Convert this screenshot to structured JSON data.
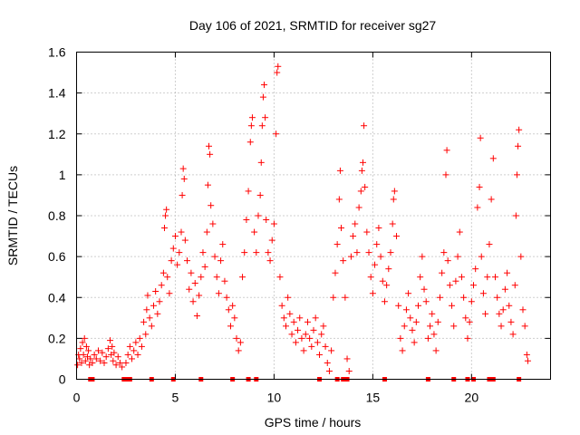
{
  "chart_data": {
    "type": "scatter",
    "title": "Day 106 of 2021, SRMTID for receiver sg27",
    "xlabel": "GPS time / hours",
    "ylabel": "SRMTID / TECUs",
    "xlim": [
      0,
      24
    ],
    "ylim": [
      0,
      1.6
    ],
    "xticks": [
      0,
      5,
      10,
      15,
      20
    ],
    "xtick_labels": [
      "0",
      "5",
      "10",
      "15",
      "20"
    ],
    "yticks": [
      0,
      0.2,
      0.4,
      0.6,
      0.8,
      1.0,
      1.2,
      1.4,
      1.6
    ],
    "ytick_labels": [
      "0",
      "0.2",
      "0.4",
      "0.6",
      "0.8",
      "1",
      "1.2",
      "1.4",
      "1.6"
    ],
    "grid": true,
    "marker": "+",
    "color": "#ff0000",
    "series": [
      {
        "name": "SRMTID",
        "points": [
          [
            0.05,
            0.07
          ],
          [
            0.1,
            0.12
          ],
          [
            0.15,
            0.1
          ],
          [
            0.2,
            0.15
          ],
          [
            0.25,
            0.08
          ],
          [
            0.3,
            0.18
          ],
          [
            0.35,
            0.12
          ],
          [
            0.4,
            0.2
          ],
          [
            0.45,
            0.09
          ],
          [
            0.5,
            0.16
          ],
          [
            0.55,
            0.11
          ],
          [
            0.6,
            0.14
          ],
          [
            0.65,
            0.07
          ],
          [
            0.7,
            0.1
          ],
          [
            0.8,
            0.08
          ],
          [
            0.9,
            0.12
          ],
          [
            1.0,
            0.1
          ],
          [
            1.1,
            0.14
          ],
          [
            1.2,
            0.09
          ],
          [
            1.3,
            0.13
          ],
          [
            1.4,
            0.08
          ],
          [
            1.5,
            0.11
          ],
          [
            1.6,
            0.15
          ],
          [
            1.7,
            0.19
          ],
          [
            1.75,
            0.12
          ],
          [
            1.8,
            0.16
          ],
          [
            1.85,
            0.09
          ],
          [
            1.9,
            0.13
          ],
          [
            2.0,
            0.07
          ],
          [
            2.1,
            0.11
          ],
          [
            2.2,
            0.08
          ],
          [
            2.3,
            0.06
          ],
          [
            2.5,
            0.08
          ],
          [
            2.6,
            0.12
          ],
          [
            2.7,
            0.16
          ],
          [
            2.8,
            0.1
          ],
          [
            2.9,
            0.14
          ],
          [
            3.0,
            0.18
          ],
          [
            3.1,
            0.12
          ],
          [
            3.2,
            0.2
          ],
          [
            3.3,
            0.16
          ],
          [
            3.4,
            0.28
          ],
          [
            3.5,
            0.22
          ],
          [
            3.55,
            0.34
          ],
          [
            3.6,
            0.41
          ],
          [
            3.7,
            0.3
          ],
          [
            3.8,
            0.26
          ],
          [
            3.9,
            0.36
          ],
          [
            4.0,
            0.43
          ],
          [
            4.1,
            0.32
          ],
          [
            4.2,
            0.38
          ],
          [
            4.3,
            0.46
          ],
          [
            4.4,
            0.52
          ],
          [
            4.45,
            0.74
          ],
          [
            4.5,
            0.8
          ],
          [
            4.55,
            0.83
          ],
          [
            4.6,
            0.5
          ],
          [
            4.7,
            0.42
          ],
          [
            4.8,
            0.58
          ],
          [
            4.9,
            0.64
          ],
          [
            5.0,
            0.7
          ],
          [
            5.1,
            0.56
          ],
          [
            5.2,
            0.62
          ],
          [
            5.3,
            0.72
          ],
          [
            5.35,
            0.9
          ],
          [
            5.4,
            1.03
          ],
          [
            5.45,
            0.98
          ],
          [
            5.5,
            0.68
          ],
          [
            5.6,
            0.58
          ],
          [
            5.7,
            0.44
          ],
          [
            5.8,
            0.52
          ],
          [
            5.9,
            0.38
          ],
          [
            6.0,
            0.47
          ],
          [
            6.1,
            0.31
          ],
          [
            6.2,
            0.41
          ],
          [
            6.3,
            0.5
          ],
          [
            6.4,
            0.62
          ],
          [
            6.5,
            0.55
          ],
          [
            6.6,
            0.72
          ],
          [
            6.65,
            0.95
          ],
          [
            6.7,
            1.14
          ],
          [
            6.75,
            1.1
          ],
          [
            6.8,
            0.85
          ],
          [
            6.9,
            0.76
          ],
          [
            7.0,
            0.6
          ],
          [
            7.1,
            0.5
          ],
          [
            7.2,
            0.42
          ],
          [
            7.3,
            0.58
          ],
          [
            7.4,
            0.66
          ],
          [
            7.5,
            0.48
          ],
          [
            7.6,
            0.4
          ],
          [
            7.7,
            0.34
          ],
          [
            7.8,
            0.26
          ],
          [
            7.9,
            0.36
          ],
          [
            8.0,
            0.3
          ],
          [
            8.1,
            0.2
          ],
          [
            8.2,
            0.14
          ],
          [
            8.3,
            0.18
          ],
          [
            8.4,
            0.5
          ],
          [
            8.5,
            0.62
          ],
          [
            8.6,
            0.78
          ],
          [
            8.7,
            0.92
          ],
          [
            8.8,
            1.16
          ],
          [
            8.85,
            1.24
          ],
          [
            8.9,
            1.28
          ],
          [
            9.0,
            0.72
          ],
          [
            9.1,
            0.62
          ],
          [
            9.2,
            0.8
          ],
          [
            9.3,
            0.9
          ],
          [
            9.35,
            1.06
          ],
          [
            9.4,
            1.24
          ],
          [
            9.45,
            1.38
          ],
          [
            9.5,
            1.44
          ],
          [
            9.55,
            1.28
          ],
          [
            9.6,
            0.78
          ],
          [
            9.7,
            0.62
          ],
          [
            9.8,
            0.58
          ],
          [
            9.9,
            0.68
          ],
          [
            10.0,
            0.76
          ],
          [
            10.1,
            1.2
          ],
          [
            10.15,
            1.5
          ],
          [
            10.2,
            1.53
          ],
          [
            10.3,
            0.5
          ],
          [
            10.4,
            0.36
          ],
          [
            10.5,
            0.3
          ],
          [
            10.6,
            0.26
          ],
          [
            10.7,
            0.4
          ],
          [
            10.8,
            0.32
          ],
          [
            10.9,
            0.22
          ],
          [
            11.0,
            0.28
          ],
          [
            11.1,
            0.18
          ],
          [
            11.2,
            0.24
          ],
          [
            11.3,
            0.3
          ],
          [
            11.4,
            0.2
          ],
          [
            11.5,
            0.14
          ],
          [
            11.6,
            0.22
          ],
          [
            11.7,
            0.28
          ],
          [
            11.8,
            0.2
          ],
          [
            11.9,
            0.16
          ],
          [
            12.0,
            0.24
          ],
          [
            12.1,
            0.3
          ],
          [
            12.2,
            0.18
          ],
          [
            12.3,
            0.12
          ],
          [
            12.4,
            0.22
          ],
          [
            12.5,
            0.26
          ],
          [
            12.6,
            0.16
          ],
          [
            12.7,
            0.08
          ],
          [
            12.8,
            0.04
          ],
          [
            12.9,
            0.14
          ],
          [
            13.0,
            0.4
          ],
          [
            13.1,
            0.52
          ],
          [
            13.2,
            0.66
          ],
          [
            13.3,
            0.88
          ],
          [
            13.35,
            1.02
          ],
          [
            13.4,
            0.74
          ],
          [
            13.5,
            0.58
          ],
          [
            13.6,
            0.4
          ],
          [
            13.7,
            0.1
          ],
          [
            13.8,
            0.04
          ],
          [
            13.9,
            0.6
          ],
          [
            14.0,
            0.7
          ],
          [
            14.1,
            0.76
          ],
          [
            14.2,
            0.62
          ],
          [
            14.3,
            0.84
          ],
          [
            14.4,
            0.92
          ],
          [
            14.45,
            1.02
          ],
          [
            14.5,
            1.06
          ],
          [
            14.55,
            1.24
          ],
          [
            14.6,
            0.94
          ],
          [
            14.7,
            0.72
          ],
          [
            14.8,
            0.62
          ],
          [
            14.9,
            0.5
          ],
          [
            15.0,
            0.42
          ],
          [
            15.1,
            0.56
          ],
          [
            15.2,
            0.66
          ],
          [
            15.3,
            0.74
          ],
          [
            15.4,
            0.6
          ],
          [
            15.5,
            0.48
          ],
          [
            15.6,
            0.38
          ],
          [
            15.7,
            0.46
          ],
          [
            15.8,
            0.54
          ],
          [
            15.9,
            0.62
          ],
          [
            16.0,
            0.76
          ],
          [
            16.05,
            0.88
          ],
          [
            16.1,
            0.92
          ],
          [
            16.2,
            0.7
          ],
          [
            16.3,
            0.36
          ],
          [
            16.4,
            0.2
          ],
          [
            16.5,
            0.14
          ],
          [
            16.6,
            0.26
          ],
          [
            16.7,
            0.34
          ],
          [
            16.8,
            0.42
          ],
          [
            16.9,
            0.3
          ],
          [
            17.0,
            0.24
          ],
          [
            17.1,
            0.18
          ],
          [
            17.2,
            0.28
          ],
          [
            17.3,
            0.36
          ],
          [
            17.4,
            0.5
          ],
          [
            17.5,
            0.6
          ],
          [
            17.6,
            0.44
          ],
          [
            17.7,
            0.38
          ],
          [
            17.8,
            0.2
          ],
          [
            17.9,
            0.26
          ],
          [
            18.0,
            0.32
          ],
          [
            18.1,
            0.22
          ],
          [
            18.2,
            0.14
          ],
          [
            18.3,
            0.28
          ],
          [
            18.4,
            0.4
          ],
          [
            18.5,
            0.52
          ],
          [
            18.6,
            0.62
          ],
          [
            18.7,
            1.0
          ],
          [
            18.75,
            1.12
          ],
          [
            18.8,
            0.58
          ],
          [
            18.9,
            0.46
          ],
          [
            19.0,
            0.36
          ],
          [
            19.1,
            0.26
          ],
          [
            19.2,
            0.48
          ],
          [
            19.3,
            0.6
          ],
          [
            19.4,
            0.72
          ],
          [
            19.5,
            0.5
          ],
          [
            19.6,
            0.4
          ],
          [
            19.7,
            0.3
          ],
          [
            19.8,
            0.2
          ],
          [
            19.9,
            0.28
          ],
          [
            20.0,
            0.38
          ],
          [
            20.1,
            0.46
          ],
          [
            20.2,
            0.54
          ],
          [
            20.3,
            0.84
          ],
          [
            20.4,
            0.94
          ],
          [
            20.45,
            1.18
          ],
          [
            20.5,
            0.6
          ],
          [
            20.6,
            0.42
          ],
          [
            20.7,
            0.32
          ],
          [
            20.8,
            0.5
          ],
          [
            20.9,
            0.66
          ],
          [
            21.0,
            0.88
          ],
          [
            21.1,
            1.08
          ],
          [
            21.2,
            0.5
          ],
          [
            21.3,
            0.4
          ],
          [
            21.4,
            0.32
          ],
          [
            21.5,
            0.26
          ],
          [
            21.6,
            0.34
          ],
          [
            21.7,
            0.44
          ],
          [
            21.8,
            0.52
          ],
          [
            21.9,
            0.36
          ],
          [
            22.0,
            0.28
          ],
          [
            22.1,
            0.22
          ],
          [
            22.2,
            0.46
          ],
          [
            22.25,
            0.8
          ],
          [
            22.3,
            1.0
          ],
          [
            22.35,
            1.14
          ],
          [
            22.4,
            1.22
          ],
          [
            22.5,
            0.6
          ],
          [
            22.6,
            0.34
          ],
          [
            22.7,
            0.26
          ],
          [
            22.8,
            0.12
          ],
          [
            22.85,
            0.09
          ]
        ]
      }
    ],
    "zero_markers_x": [
      0.7,
      0.8,
      2.4,
      2.5,
      2.6,
      2.7,
      3.8,
      4.9,
      6.3,
      7.9,
      8.7,
      9.1,
      12.3,
      13.2,
      13.5,
      13.7,
      15.6,
      17.8,
      19.1,
      19.8,
      20.1,
      20.9,
      21.0,
      21.1,
      22.4
    ]
  }
}
